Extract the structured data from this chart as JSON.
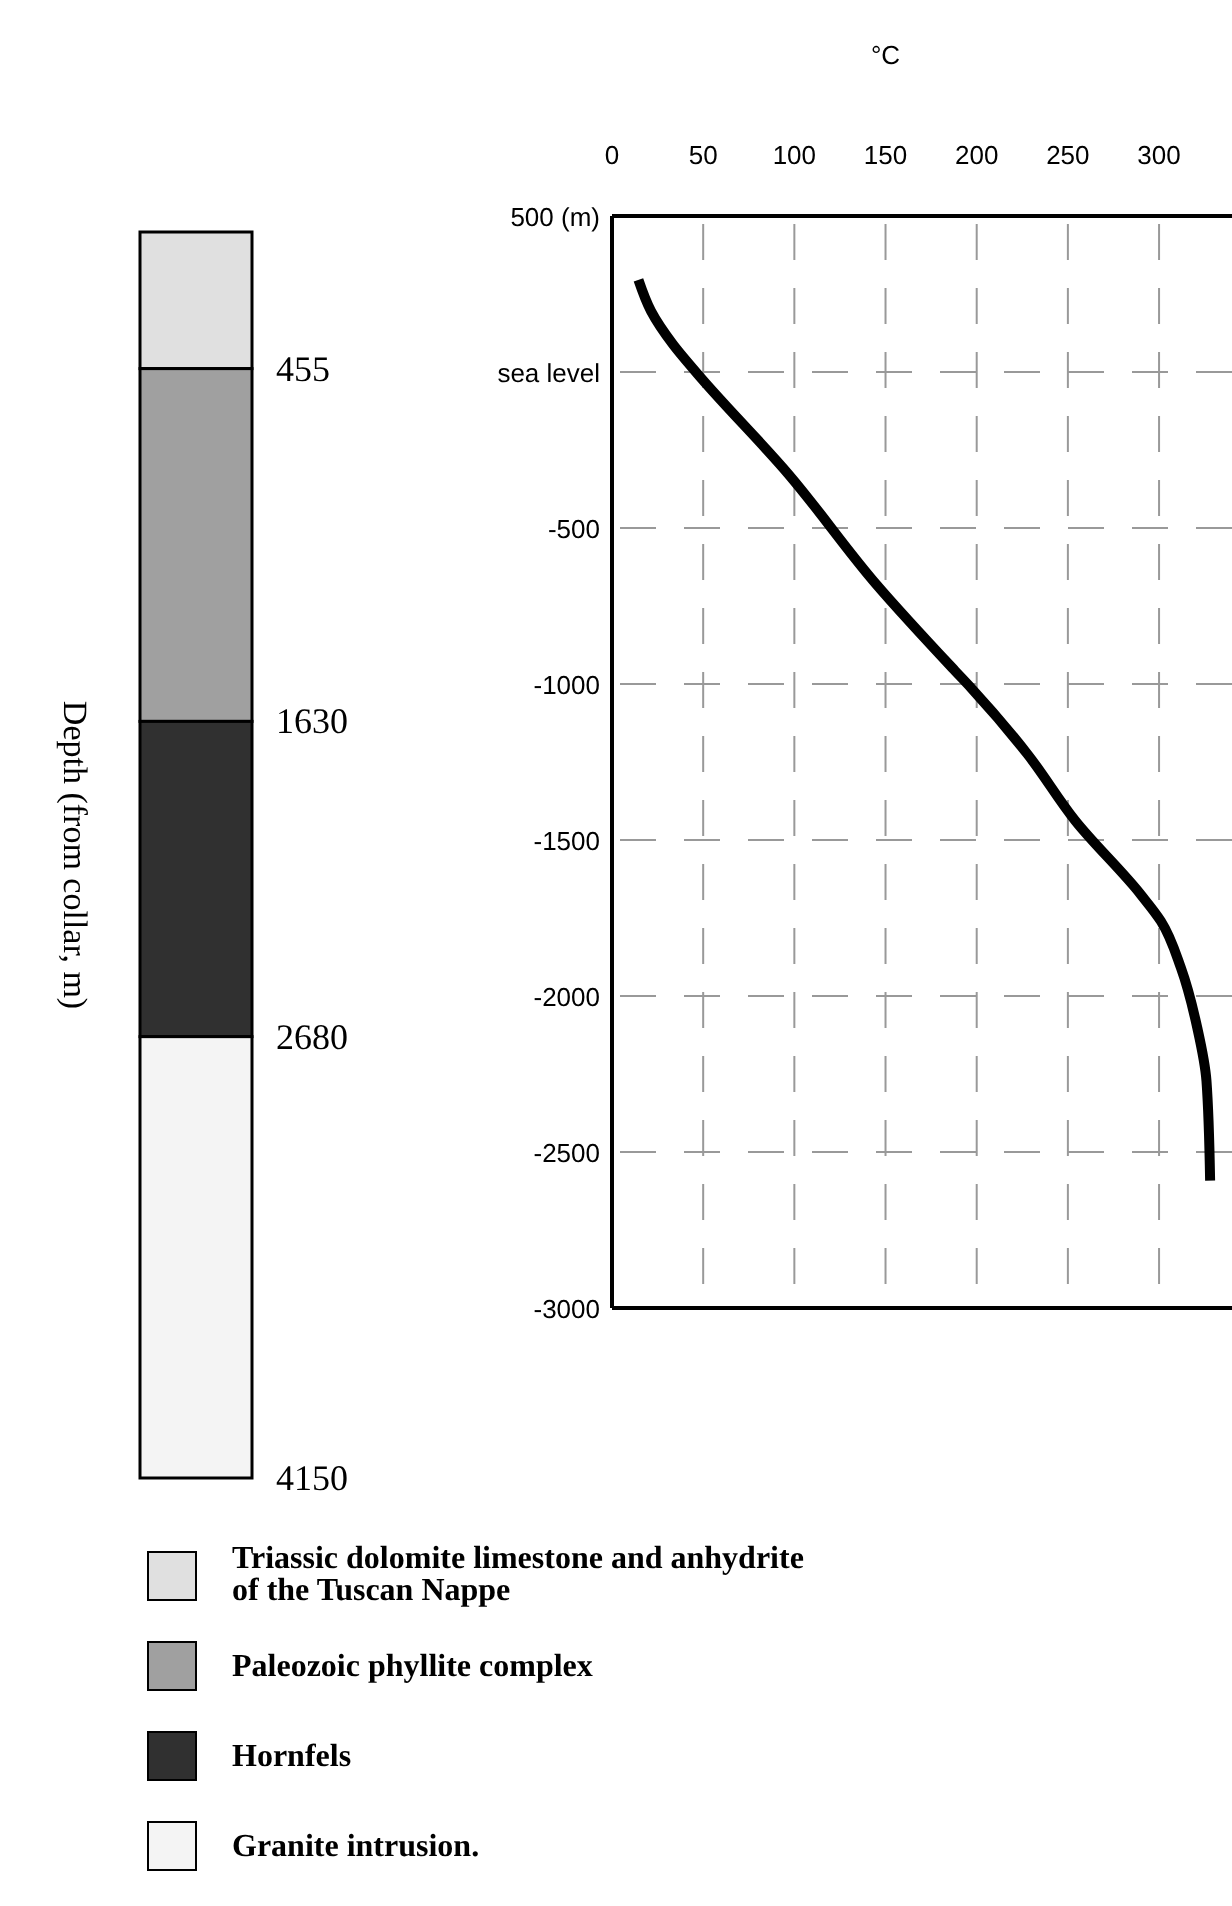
{
  "chart_data": [
    {
      "type": "bar",
      "categories": [
        null
      ],
      "stacked": true,
      "ylabel": "Depth (from collar, m)",
      "ylim": [
        4150,
        0
      ],
      "yticks": [
        455,
        1630,
        2680,
        4150
      ],
      "legend": "bottom",
      "series": [
        {
          "name": "Triassic dolomite limestone and anhydrite of the Tuscan Nappe",
          "color": "#e0e0e0",
          "values": [
            455
          ]
        },
        {
          "name": "Paleozoic phyllite complex",
          "color": "#a0a0a0",
          "values": [
            1175
          ]
        },
        {
          "name": "Hornfels",
          "color": "#303030",
          "values": [
            1050
          ]
        },
        {
          "name": "Granite intrusion.",
          "color": "#f4f4f4",
          "values": [
            1470
          ]
        }
      ]
    },
    {
      "type": "line",
      "xlabel": "°C",
      "xlim": [
        0,
        340
      ],
      "xticks": [
        0,
        50,
        100,
        150,
        200,
        250,
        300
      ],
      "ylim": [
        -3000,
        500
      ],
      "yticks": [
        {
          "value": 500,
          "label": "500 (m)"
        },
        {
          "value": 0,
          "label": "sea level"
        },
        -500,
        -1000,
        -1500,
        -2000,
        -2500,
        -3000
      ],
      "grid": true,
      "marker": "none",
      "line_style": "solid",
      "series": [
        {
          "color": "#000000",
          "x": [
            14.5,
            21.4,
            33.5,
            46,
            97,
            145,
            188,
            197,
            228,
            254,
            290,
            301,
            312,
            321,
            326,
            328
          ],
          "values": [
            295,
            195,
            88,
            0,
            -329,
            -681,
            -957,
            -1013,
            -1226,
            -1438,
            -1675,
            -1760,
            -1910,
            -2103,
            -2272,
            -2592
          ]
        }
      ]
    }
  ]
}
